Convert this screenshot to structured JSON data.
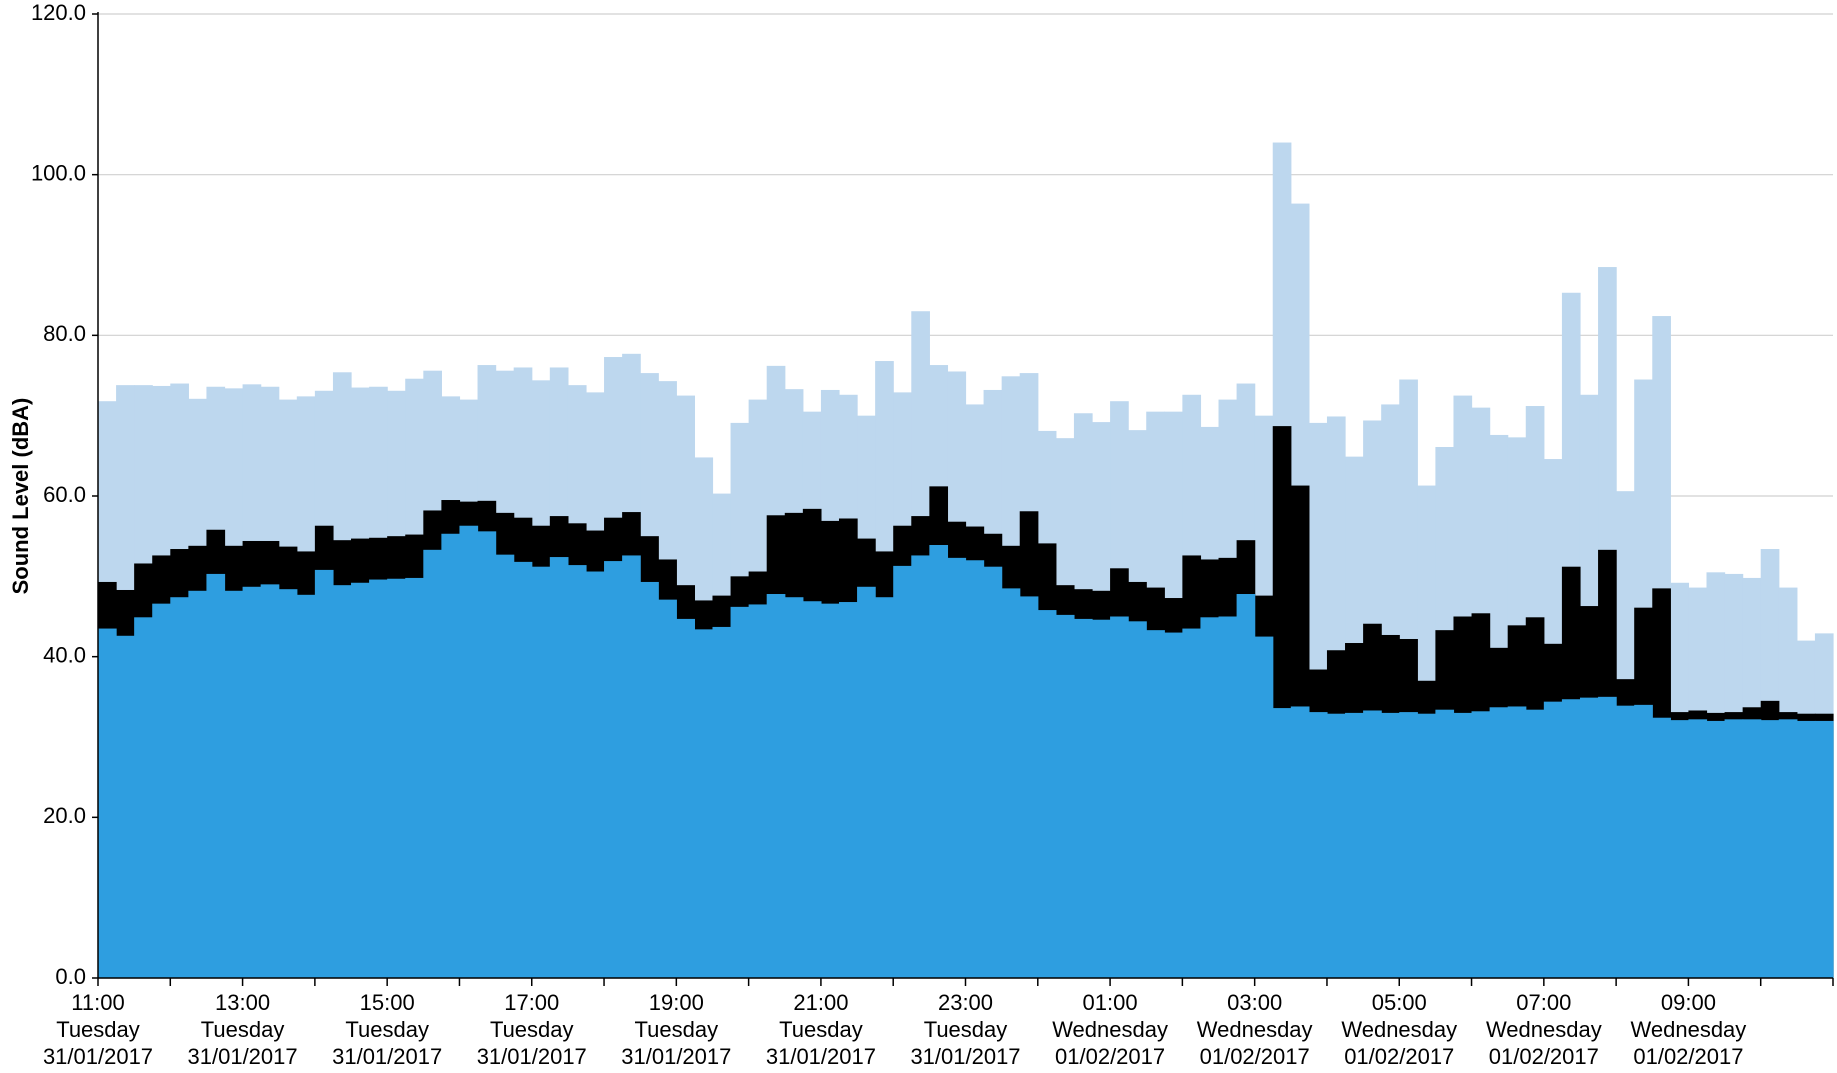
{
  "chart_data": {
    "type": "bar",
    "overlay": true,
    "y_label": "Sound Level (dBA)",
    "categories": [
      [
        "11:00",
        "Tuesday",
        "31/01/2017"
      ],
      null,
      null,
      null,
      null,
      null,
      null,
      null,
      [
        "13:00",
        "Tuesday",
        "31/01/2017"
      ],
      null,
      null,
      null,
      null,
      null,
      null,
      null,
      [
        "15:00",
        "Tuesday",
        "31/01/2017"
      ],
      null,
      null,
      null,
      null,
      null,
      null,
      null,
      [
        "17:00",
        "Tuesday",
        "31/01/2017"
      ],
      null,
      null,
      null,
      null,
      null,
      null,
      null,
      [
        "19:00",
        "Tuesday",
        "31/01/2017"
      ],
      null,
      null,
      null,
      null,
      null,
      null,
      null,
      [
        "21:00",
        "Tuesday",
        "31/01/2017"
      ],
      null,
      null,
      null,
      null,
      null,
      null,
      null,
      [
        "23:00",
        "Tuesday",
        "31/01/2017"
      ],
      null,
      null,
      null,
      null,
      null,
      null,
      null,
      [
        "01:00",
        "Wednesday",
        "01/02/2017"
      ],
      null,
      null,
      null,
      null,
      null,
      null,
      null,
      [
        "03:00",
        "Wednesday",
        "01/02/2017"
      ],
      null,
      null,
      null,
      null,
      null,
      null,
      null,
      [
        "05:00",
        "Wednesday",
        "01/02/2017"
      ],
      null,
      null,
      null,
      null,
      null,
      null,
      null,
      [
        "07:00",
        "Wednesday",
        "01/02/2017"
      ],
      null,
      null,
      null,
      null,
      null,
      null,
      null,
      [
        "09:00",
        "Wednesday",
        "01/02/2017"
      ],
      null,
      null,
      null,
      null,
      null,
      null,
      null
    ],
    "series": [
      {
        "color": "#bdd7ee",
        "values": [
          71.8,
          73.8,
          73.8,
          73.7,
          74.0,
          72.1,
          73.6,
          73.4,
          73.9,
          73.6,
          72.0,
          72.4,
          73.1,
          75.4,
          73.5,
          73.6,
          73.1,
          74.6,
          75.6,
          72.4,
          72.0,
          76.3,
          75.6,
          76.0,
          74.4,
          76.0,
          73.8,
          72.9,
          77.3,
          77.7,
          75.3,
          74.3,
          72.5,
          64.8,
          60.3,
          69.1,
          72.0,
          76.2,
          73.3,
          70.5,
          73.2,
          72.6,
          70.0,
          76.8,
          72.9,
          83.0,
          76.3,
          75.5,
          71.4,
          73.2,
          74.9,
          75.3,
          68.1,
          67.2,
          70.3,
          69.2,
          71.8,
          68.2,
          70.5,
          70.5,
          72.6,
          68.6,
          72.0,
          74.0,
          70.0,
          104.0,
          96.4,
          69.1,
          69.9,
          64.9,
          69.4,
          71.4,
          74.5,
          61.3,
          66.1,
          72.5,
          71.0,
          67.6,
          67.3,
          71.2,
          64.6,
          85.3,
          72.6,
          88.5,
          60.6,
          74.5,
          82.4,
          49.2,
          48.6,
          50.5,
          50.3,
          49.8,
          53.4,
          48.6,
          42.0,
          42.9
        ]
      },
      {
        "color": "#000000",
        "values": [
          49.3,
          48.3,
          51.6,
          52.6,
          53.4,
          53.8,
          55.8,
          53.8,
          54.4,
          54.4,
          53.7,
          53.1,
          56.3,
          54.5,
          54.7,
          54.8,
          55.0,
          55.2,
          58.2,
          59.5,
          59.3,
          59.4,
          57.9,
          57.3,
          56.3,
          57.5,
          56.6,
          55.7,
          57.3,
          58.0,
          55.0,
          52.1,
          48.9,
          47.0,
          47.6,
          50.0,
          50.6,
          57.6,
          57.9,
          58.4,
          56.9,
          57.2,
          54.7,
          53.1,
          56.3,
          57.5,
          61.2,
          56.8,
          56.2,
          55.3,
          53.8,
          58.1,
          54.1,
          48.9,
          48.4,
          48.2,
          51.0,
          49.3,
          48.6,
          47.3,
          52.6,
          52.1,
          52.3,
          54.5,
          47.6,
          68.7,
          61.3,
          38.4,
          40.8,
          41.7,
          44.1,
          42.7,
          42.2,
          37.0,
          43.3,
          45.0,
          45.4,
          41.1,
          43.9,
          44.9,
          41.6,
          51.2,
          46.3,
          53.3,
          37.2,
          46.1,
          48.5,
          33.1,
          33.3,
          33.0,
          33.1,
          33.7,
          34.5,
          33.1,
          32.9,
          32.9
        ]
      },
      {
        "color": "#2e9ee0",
        "values": [
          43.5,
          42.6,
          44.9,
          46.6,
          47.4,
          48.2,
          50.3,
          48.2,
          48.7,
          49.0,
          48.4,
          47.7,
          50.8,
          48.9,
          49.2,
          49.6,
          49.7,
          49.8,
          53.3,
          55.3,
          56.3,
          55.6,
          52.7,
          51.8,
          51.2,
          52.4,
          51.4,
          50.6,
          51.9,
          52.6,
          49.3,
          47.1,
          44.7,
          43.4,
          43.7,
          46.2,
          46.5,
          47.8,
          47.4,
          46.9,
          46.6,
          46.8,
          48.7,
          47.4,
          51.3,
          52.6,
          53.9,
          52.3,
          52.0,
          51.2,
          48.5,
          47.5,
          45.8,
          45.2,
          44.7,
          44.6,
          45.0,
          44.4,
          43.3,
          43.0,
          43.5,
          44.9,
          45.0,
          47.8,
          42.5,
          33.6,
          33.8,
          33.1,
          32.9,
          33.0,
          33.3,
          33.0,
          33.1,
          32.9,
          33.4,
          33.0,
          33.2,
          33.7,
          33.8,
          33.4,
          34.4,
          34.7,
          34.9,
          35.0,
          33.9,
          34.0,
          32.4,
          32.1,
          32.2,
          32.0,
          32.2,
          32.2,
          32.1,
          32.2,
          32.0,
          32.0
        ]
      }
    ],
    "ylim": [
      0,
      120
    ],
    "yticks": [
      {
        "value": 0,
        "label": "0.0"
      },
      {
        "value": 20,
        "label": "20.0"
      },
      {
        "value": 40,
        "label": "40.0"
      },
      {
        "value": 60,
        "label": "60.0"
      },
      {
        "value": 80,
        "label": "80.0"
      },
      {
        "value": 100,
        "label": "100.0"
      },
      {
        "value": 120,
        "label": "120.0"
      }
    ],
    "grid": true
  }
}
